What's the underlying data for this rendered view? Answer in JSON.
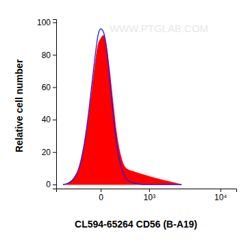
{
  "chart_data": {
    "type": "area",
    "x_label": "CL594-65264 CD56 (B-A19)",
    "y_label": "Relative cell number",
    "annotations": [
      "WWW.PTGLAB.COM"
    ],
    "log": "x",
    "x": [
      -646,
      -505,
      -382,
      -290,
      -210,
      -150,
      -96,
      -56,
      -27,
      0,
      27,
      56,
      96,
      141,
      189,
      255,
      328,
      411,
      520,
      646,
      814,
      1008,
      1238,
      1543,
      1953,
      2447,
      3055
    ],
    "series": [
      {
        "type": "area",
        "color": "#ff0000",
        "values": [
          0,
          1,
          4,
          10,
          22,
          38,
          58,
          75,
          86,
          90,
          92,
          86,
          70,
          50,
          32,
          18,
          11,
          9,
          8,
          7,
          6,
          5,
          4,
          3,
          2,
          1,
          0
        ]
      },
      {
        "type": "line",
        "color": "#1a1aff",
        "values": [
          0,
          1,
          4,
          10,
          23,
          40,
          62,
          80,
          92,
          96,
          94,
          86,
          66,
          44,
          26,
          12,
          5,
          2,
          1,
          0.3,
          0,
          0,
          0,
          0,
          0,
          0,
          0
        ]
      }
    ],
    "xlim": [
      -860,
      16000
    ],
    "xticks": [
      0,
      {
        "value": 1000,
        "label": "10³"
      },
      {
        "value": 10000,
        "label": "10⁴"
      }
    ],
    "ylim": [
      -2.5,
      102
    ],
    "yticks": [
      0,
      20,
      40,
      60,
      80,
      100
    ],
    "grid": false
  }
}
